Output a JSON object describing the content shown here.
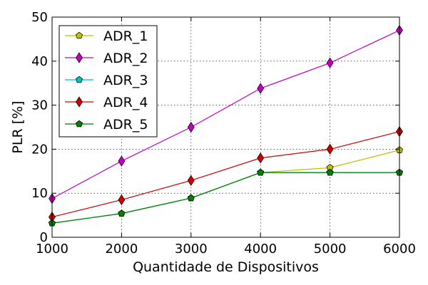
{
  "chart_data": {
    "type": "line",
    "xlabel": "Quantidade de Dispositivos",
    "ylabel": "PLR [%]",
    "x": [
      1000,
      2000,
      3000,
      4000,
      5000,
      6000
    ],
    "xlim": [
      1000,
      6000
    ],
    "ylim": [
      0,
      50
    ],
    "xticks": [
      1000,
      2000,
      3000,
      4000,
      5000,
      6000
    ],
    "yticks": [
      0,
      10,
      20,
      30,
      40,
      50
    ],
    "grid": true,
    "legend_position": "top-left",
    "series": [
      {
        "name": "ADR_1",
        "color": "#bfbf00",
        "marker": "pentagon",
        "values": [
          3.2,
          5.4,
          8.9,
          14.7,
          15.8,
          19.8
        ]
      },
      {
        "name": "ADR_2",
        "color": "#bf00bf",
        "marker": "diamond",
        "values": [
          8.8,
          17.3,
          25.0,
          33.8,
          39.6,
          47.0
        ]
      },
      {
        "name": "ADR_3",
        "color": "#00bfbf",
        "marker": "pentagon",
        "values": [
          3.2,
          5.4,
          8.9,
          14.7,
          14.7,
          14.7
        ]
      },
      {
        "name": "ADR_4",
        "color": "#cc0000",
        "marker": "diamond",
        "values": [
          4.6,
          8.5,
          12.9,
          18.0,
          20.0,
          24.0
        ]
      },
      {
        "name": "ADR_5",
        "color": "#007f00",
        "marker": "pentagon",
        "values": [
          3.2,
          5.4,
          8.9,
          14.7,
          14.7,
          14.7
        ]
      }
    ]
  }
}
